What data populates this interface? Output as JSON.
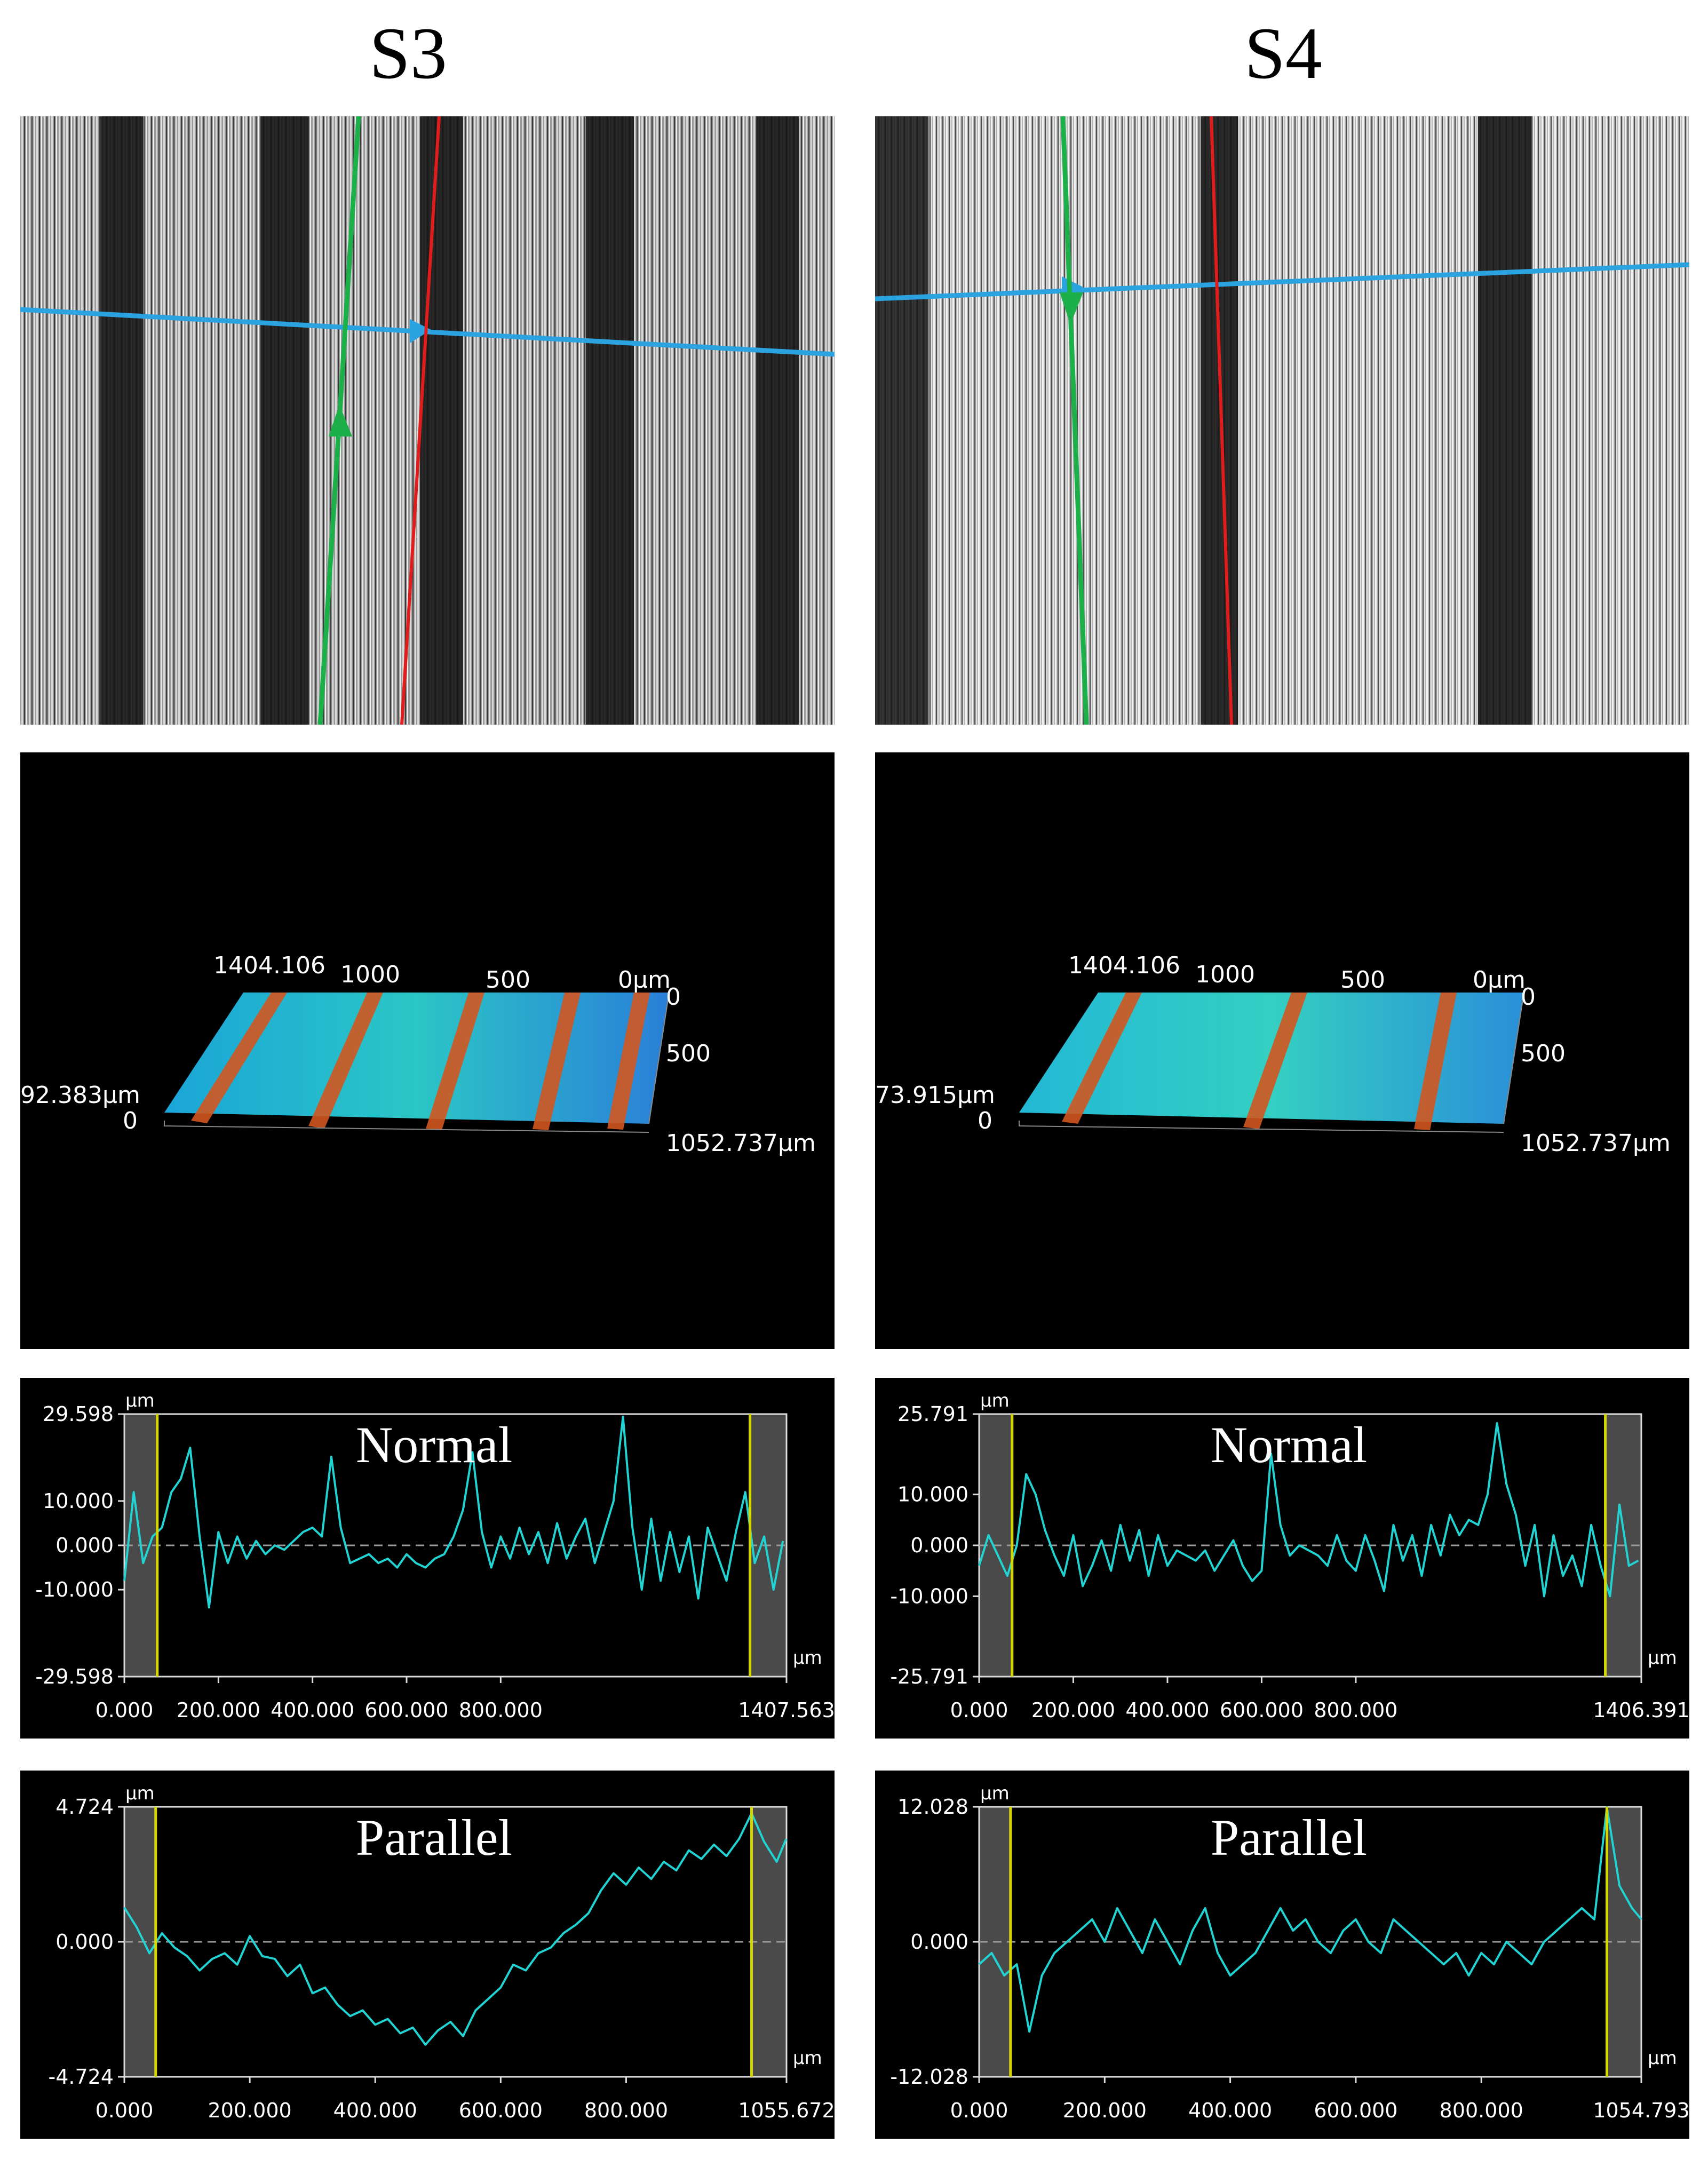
{
  "columns": [
    {
      "title": "S3",
      "surface": {
        "x_ticks": [
          "1404.106",
          "1000",
          "500",
          "0μm"
        ],
        "y_ticks": [
          "0",
          "500",
          "1052.737μm"
        ],
        "z_ticks": [
          "92.383μm",
          "0"
        ]
      }
    },
    {
      "title": "S4",
      "surface": {
        "x_ticks": [
          "1404.106",
          "1000",
          "500",
          "0μm"
        ],
        "y_ticks": [
          "0",
          "500",
          "1052.737μm"
        ],
        "z_ticks": [
          "73.915μm",
          "0"
        ]
      }
    }
  ],
  "colors": {
    "profile_line": "#22d3d3",
    "cursor_line": "#d6d600",
    "frame": "#dcdcdc",
    "zero_line": "#9a9a9a",
    "measure_blue": "#2aa3e0",
    "measure_green": "#1db04a",
    "measure_red": "#e01c1c"
  },
  "chart_data": [
    {
      "type": "line",
      "sample": "S3",
      "title": "Normal",
      "unit_y": "μm",
      "unit_x": "μm",
      "xlim": [
        0,
        1407.563
      ],
      "ylim": [
        -29.598,
        29.598
      ],
      "x_tick_labels": [
        "0.000",
        "200.000",
        "400.000",
        "600.000",
        "800.000",
        "1407.563"
      ],
      "x_tick_values": [
        0,
        200,
        400,
        600,
        800,
        1407.563
      ],
      "y_tick_labels": [
        "29.598",
        "10.000",
        "0.000",
        "-10.000",
        "-29.598"
      ],
      "y_tick_values": [
        29.598,
        10,
        0,
        -10,
        -29.598
      ],
      "cursors": [
        70,
        1330
      ],
      "x": [
        0,
        20,
        40,
        60,
        80,
        100,
        120,
        140,
        160,
        180,
        200,
        220,
        240,
        260,
        280,
        300,
        320,
        340,
        360,
        380,
        400,
        420,
        440,
        460,
        480,
        500,
        520,
        540,
        560,
        580,
        600,
        620,
        640,
        660,
        680,
        700,
        720,
        740,
        760,
        780,
        800,
        820,
        840,
        860,
        880,
        900,
        920,
        940,
        960,
        980,
        1000,
        1020,
        1040,
        1060,
        1080,
        1100,
        1120,
        1140,
        1160,
        1180,
        1200,
        1220,
        1240,
        1260,
        1280,
        1300,
        1320,
        1340,
        1360,
        1380,
        1400
      ],
      "y": [
        -8,
        12,
        -4,
        2,
        4,
        12,
        15,
        22,
        2,
        -14,
        3,
        -4,
        2,
        -3,
        1,
        -2,
        0,
        -1,
        1,
        3,
        4,
        2,
        20,
        4,
        -4,
        -3,
        -2,
        -4,
        -3,
        -5,
        -2,
        -4,
        -5,
        -3,
        -2,
        2,
        8,
        21,
        3,
        -5,
        2,
        -3,
        4,
        -2,
        3,
        -4,
        5,
        -3,
        2,
        6,
        -4,
        3,
        10,
        29,
        4,
        -10,
        6,
        -8,
        3,
        -6,
        2,
        -12,
        4,
        -2,
        -8,
        3,
        12,
        -4,
        2,
        -10,
        1
      ]
    },
    {
      "type": "line",
      "sample": "S3",
      "title": "Parallel",
      "unit_y": "μm",
      "unit_x": "μm",
      "xlim": [
        0,
        1055.672
      ],
      "ylim": [
        -4.724,
        4.724
      ],
      "x_tick_labels": [
        "0.000",
        "200.000",
        "400.000",
        "600.000",
        "800.000",
        "1055.672"
      ],
      "x_tick_values": [
        0,
        200,
        400,
        600,
        800,
        1055.672
      ],
      "y_tick_labels": [
        "4.724",
        "0.000",
        "-4.724"
      ],
      "y_tick_values": [
        4.724,
        0,
        -4.724
      ],
      "cursors": [
        50,
        1000
      ],
      "x": [
        0,
        20,
        40,
        60,
        80,
        100,
        120,
        140,
        160,
        180,
        200,
        220,
        240,
        260,
        280,
        300,
        320,
        340,
        360,
        380,
        400,
        420,
        440,
        460,
        480,
        500,
        520,
        540,
        560,
        580,
        600,
        620,
        640,
        660,
        680,
        700,
        720,
        740,
        760,
        780,
        800,
        820,
        840,
        860,
        880,
        900,
        920,
        940,
        960,
        980,
        1000,
        1020,
        1040,
        1055
      ],
      "y": [
        1.2,
        0.5,
        -0.4,
        0.3,
        -0.2,
        -0.5,
        -1.0,
        -0.6,
        -0.4,
        -0.8,
        0.2,
        -0.5,
        -0.6,
        -1.2,
        -0.8,
        -1.8,
        -1.6,
        -2.2,
        -2.6,
        -2.4,
        -2.9,
        -2.7,
        -3.2,
        -3.0,
        -3.6,
        -3.1,
        -2.8,
        -3.3,
        -2.4,
        -2.0,
        -1.6,
        -0.8,
        -1.0,
        -0.4,
        -0.2,
        0.3,
        0.6,
        1.0,
        1.8,
        2.4,
        2.0,
        2.6,
        2.2,
        2.8,
        2.5,
        3.2,
        2.9,
        3.4,
        3.0,
        3.6,
        4.5,
        3.5,
        2.8,
        3.6
      ]
    },
    {
      "type": "line",
      "sample": "S4",
      "title": "Normal",
      "unit_y": "μm",
      "unit_x": "μm",
      "xlim": [
        0,
        1406.391
      ],
      "ylim": [
        -25.791,
        25.791
      ],
      "x_tick_labels": [
        "0.000",
        "200.000",
        "400.000",
        "600.000",
        "800.000",
        "1406.391"
      ],
      "x_tick_values": [
        0,
        200,
        400,
        600,
        800,
        1406.391
      ],
      "y_tick_labels": [
        "25.791",
        "10.000",
        "0.000",
        "-10.000",
        "-25.791"
      ],
      "y_tick_values": [
        25.791,
        10,
        0,
        -10,
        -25.791
      ],
      "cursors": [
        70,
        1330
      ],
      "x": [
        0,
        20,
        40,
        60,
        80,
        100,
        120,
        140,
        160,
        180,
        200,
        220,
        240,
        260,
        280,
        300,
        320,
        340,
        360,
        380,
        400,
        420,
        440,
        460,
        480,
        500,
        520,
        540,
        560,
        580,
        600,
        620,
        640,
        660,
        680,
        700,
        720,
        740,
        760,
        780,
        800,
        820,
        840,
        860,
        880,
        900,
        920,
        940,
        960,
        980,
        1000,
        1020,
        1040,
        1060,
        1080,
        1100,
        1120,
        1140,
        1160,
        1180,
        1200,
        1220,
        1240,
        1260,
        1280,
        1300,
        1320,
        1340,
        1360,
        1380,
        1400
      ],
      "y": [
        -4,
        2,
        -2,
        -6,
        0,
        14,
        10,
        3,
        -2,
        -6,
        2,
        -8,
        -4,
        1,
        -5,
        4,
        -3,
        3,
        -6,
        2,
        -4,
        -1,
        -2,
        -3,
        -1,
        -5,
        -2,
        1,
        -4,
        -7,
        -5,
        18,
        4,
        -2,
        0,
        -1,
        -2,
        -4,
        2,
        -3,
        -5,
        2,
        -3,
        -9,
        4,
        -3,
        2,
        -6,
        4,
        -2,
        6,
        2,
        5,
        4,
        10,
        24,
        12,
        6,
        -4,
        4,
        -10,
        2,
        -6,
        -2,
        -8,
        4,
        -4,
        -10,
        8,
        -4,
        -3
      ]
    },
    {
      "type": "line",
      "sample": "S4",
      "title": "Parallel",
      "unit_y": "μm",
      "unit_x": "μm",
      "xlim": [
        0,
        1054.793
      ],
      "ylim": [
        -12.028,
        12.028
      ],
      "x_tick_labels": [
        "0.000",
        "200.000",
        "400.000",
        "600.000",
        "800.000",
        "1054.793"
      ],
      "x_tick_values": [
        0,
        200,
        400,
        600,
        800,
        1054.793
      ],
      "y_tick_labels": [
        "12.028",
        "0.000",
        "-12.028"
      ],
      "y_tick_values": [
        12.028,
        0,
        -12.028
      ],
      "cursors": [
        50,
        1000
      ],
      "x": [
        0,
        20,
        40,
        60,
        80,
        100,
        120,
        140,
        160,
        180,
        200,
        220,
        240,
        260,
        280,
        300,
        320,
        340,
        360,
        380,
        400,
        420,
        440,
        460,
        480,
        500,
        520,
        540,
        560,
        580,
        600,
        620,
        640,
        660,
        680,
        700,
        720,
        740,
        760,
        780,
        800,
        820,
        840,
        860,
        880,
        900,
        920,
        940,
        960,
        980,
        1000,
        1020,
        1040,
        1055
      ],
      "y": [
        -2,
        -1,
        -3,
        -2,
        -8,
        -3,
        -1,
        0,
        1,
        2,
        0,
        3,
        1,
        -1,
        2,
        0,
        -2,
        1,
        3,
        -1,
        -3,
        -2,
        -1,
        1,
        3,
        1,
        2,
        0,
        -1,
        1,
        2,
        0,
        -1,
        2,
        1,
        0,
        -1,
        -2,
        -1,
        -3,
        -1,
        -2,
        0,
        -1,
        -2,
        0,
        1,
        2,
        3,
        2,
        12,
        5,
        3,
        2
      ]
    }
  ]
}
